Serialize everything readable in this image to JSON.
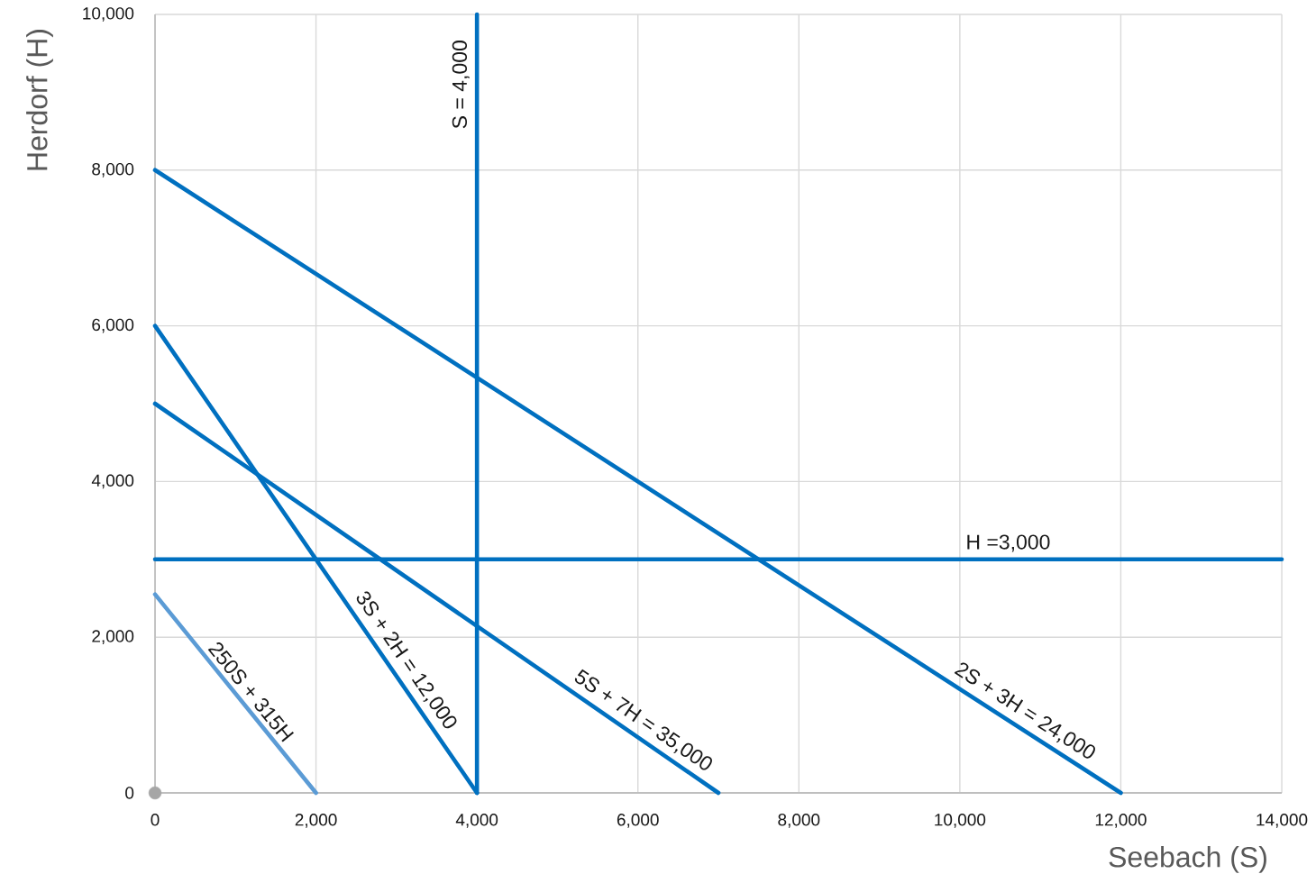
{
  "chart_data": {
    "type": "line",
    "xlabel": "Seebach (S)",
    "ylabel": "Herdorf (H)",
    "xlim": [
      0,
      14000
    ],
    "ylim": [
      0,
      10000
    ],
    "xticks": [
      0,
      {
        "value": 2000,
        "label": "2,000"
      },
      {
        "value": 4000,
        "label": "4,000"
      },
      {
        "value": 6000,
        "label": "6,000"
      },
      {
        "value": 8000,
        "label": "8,000"
      },
      {
        "value": 10000,
        "label": "10,000"
      },
      {
        "value": 12000,
        "label": "12,000"
      },
      {
        "value": 14000,
        "label": "14,000"
      }
    ],
    "yticks": [
      0,
      {
        "value": 2000,
        "label": "2,000"
      },
      {
        "value": 4000,
        "label": "4,000"
      },
      {
        "value": 6000,
        "label": "6,000"
      },
      {
        "value": 8000,
        "label": "8,000"
      },
      {
        "value": 10000,
        "label": "10,000"
      }
    ],
    "grid": true,
    "series": [
      {
        "color": "#0070c0",
        "x": [
          4000,
          4000
        ],
        "values": [
          0,
          10000
        ]
      },
      {
        "color": "#0070c0",
        "x": [
          0,
          12000
        ],
        "values": [
          8000,
          0
        ]
      },
      {
        "color": "#0070c0",
        "x": [
          0,
          4000
        ],
        "values": [
          6000,
          0
        ]
      },
      {
        "color": "#0070c0",
        "x": [
          0,
          7000
        ],
        "values": [
          5000,
          0
        ]
      },
      {
        "color": "#0070c0",
        "x": [
          0,
          14000
        ],
        "values": [
          3000,
          3000
        ]
      },
      {
        "color": "#5b9bd5",
        "x": [
          0,
          2000
        ],
        "values": [
          2550,
          0
        ]
      },
      {
        "type": "scatter",
        "color": "#a6a6a6",
        "marker": "circle",
        "x": [
          0
        ],
        "values": [
          0
        ]
      }
    ],
    "annotations": [
      {
        "text": "S = 4,000",
        "x": 4000,
        "y": 9100
      },
      {
        "text": "H =3,000",
        "x": 10600,
        "y": 3000
      },
      {
        "text": "250S + 315H",
        "x": 1050,
        "y": 1180
      },
      {
        "text": "3S + 2H = 12,000",
        "x": 2950,
        "y": 1580
      },
      {
        "text": "5S + 7H = 35,000",
        "x": 5950,
        "y": 750
      },
      {
        "text": "2S + 3H = 24,000",
        "x": 10700,
        "y": 870
      }
    ]
  }
}
